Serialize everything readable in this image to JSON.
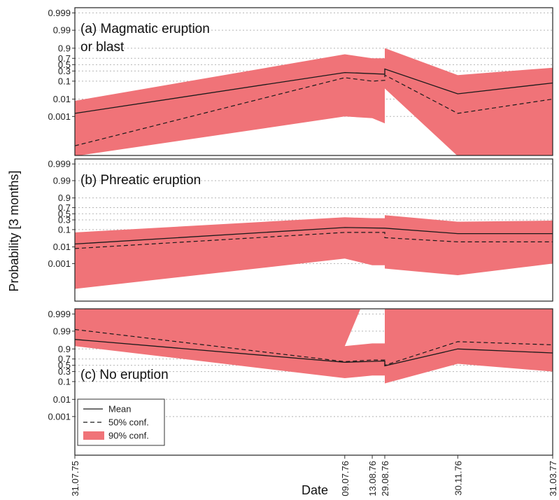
{
  "chart_data": {
    "type": "area",
    "xlabel": "Date",
    "ylabel": "Probability [3 months]",
    "x_dates": [
      "31.07.75",
      "09.07.76",
      "13.08.76",
      "29.08.76",
      "30.11.76",
      "31.03.77"
    ],
    "y_scale": "logit",
    "y_ticks": [
      {
        "label": "0.999",
        "value": 0.999
      },
      {
        "label": "0.99",
        "value": 0.99
      },
      {
        "label": "0.9",
        "value": 0.9
      },
      {
        "label": "0.7",
        "value": 0.7
      },
      {
        "label": "0.5",
        "value": 0.5
      },
      {
        "label": "0.3",
        "value": 0.3
      },
      {
        "label": "0.1",
        "value": 0.1
      },
      {
        "label": "0.01",
        "value": 0.01
      },
      {
        "label": "0.001",
        "value": 0.001
      }
    ],
    "grid": true,
    "legend": {
      "placement": "bottom-left of panel (c)",
      "entries": [
        {
          "label": "Mean",
          "style": "solid"
        },
        {
          "label": "50% conf.",
          "style": "dashed"
        },
        {
          "label": "90% conf.",
          "style": "fill"
        }
      ]
    },
    "colors": {
      "band": "#f07378",
      "line": "#1a1a1a",
      "grid": "#b5b5b5"
    },
    "panels": [
      {
        "label": "(a) Magmatic eruption\nor blast",
        "mean": [
          {
            "x": "31.07.75",
            "y": 0.0015
          },
          {
            "x": "09.07.76",
            "y": 0.26
          },
          {
            "x": "29.08.76",
            "y": 0.22
          },
          {
            "x": "29.08.76",
            "y": 0.36
          },
          {
            "x": "30.11.76",
            "y": 0.02
          },
          {
            "x": "31.03.77",
            "y": 0.08
          }
        ],
        "conf50": [
          {
            "x": "31.07.75",
            "y": 2e-05
          },
          {
            "x": "09.07.76",
            "y": 0.15
          },
          {
            "x": "13.08.76",
            "y": 0.1
          },
          {
            "x": "29.08.76",
            "y": 0.11
          },
          {
            "x": "29.08.76",
            "y": 0.2
          },
          {
            "x": "30.11.76",
            "y": 0.0015
          },
          {
            "x": "31.03.77",
            "y": 0.01
          }
        ],
        "band_upper": [
          {
            "x": "31.07.75",
            "y": 0.008
          },
          {
            "x": "09.07.76",
            "y": 0.8
          },
          {
            "x": "13.08.76",
            "y": 0.7
          },
          {
            "x": "29.08.76",
            "y": 0.7
          },
          {
            "x": "29.08.76",
            "y": 0.9
          },
          {
            "x": "30.11.76",
            "y": 0.2
          },
          {
            "x": "31.03.77",
            "y": 0.4
          }
        ],
        "band_lower": [
          {
            "x": "31.07.75",
            "y": 5e-06
          },
          {
            "x": "09.07.76",
            "y": 0.001
          },
          {
            "x": "13.08.76",
            "y": 0.0008
          },
          {
            "x": "29.08.76",
            "y": 0.0004
          },
          {
            "x": "29.08.76",
            "y": 0.04
          },
          {
            "x": "30.11.76",
            "y": 5e-06
          },
          {
            "x": "31.03.77",
            "y": 5e-06
          }
        ]
      },
      {
        "label": "(b) Phreatic eruption",
        "mean": [
          {
            "x": "31.07.75",
            "y": 0.015
          },
          {
            "x": "09.07.76",
            "y": 0.13
          },
          {
            "x": "29.08.76",
            "y": 0.12
          },
          {
            "x": "30.11.76",
            "y": 0.06
          },
          {
            "x": "31.03.77",
            "y": 0.06
          }
        ],
        "conf50": [
          {
            "x": "31.07.75",
            "y": 0.008
          },
          {
            "x": "09.07.76",
            "y": 0.07
          },
          {
            "x": "29.08.76",
            "y": 0.07
          },
          {
            "x": "29.08.76",
            "y": 0.035
          },
          {
            "x": "30.11.76",
            "y": 0.02
          },
          {
            "x": "31.03.77",
            "y": 0.02
          }
        ],
        "band_upper": [
          {
            "x": "31.07.75",
            "y": 0.07
          },
          {
            "x": "09.07.76",
            "y": 0.38
          },
          {
            "x": "13.08.76",
            "y": 0.35
          },
          {
            "x": "29.08.76",
            "y": 0.35
          },
          {
            "x": "29.08.76",
            "y": 0.45
          },
          {
            "x": "30.11.76",
            "y": 0.25
          },
          {
            "x": "31.03.77",
            "y": 0.28
          }
        ],
        "band_lower": [
          {
            "x": "31.07.75",
            "y": 3e-05
          },
          {
            "x": "09.07.76",
            "y": 0.002
          },
          {
            "x": "13.08.76",
            "y": 0.0008
          },
          {
            "x": "29.08.76",
            "y": 0.0008
          },
          {
            "x": "29.08.76",
            "y": 0.0005
          },
          {
            "x": "30.11.76",
            "y": 0.0002
          },
          {
            "x": "31.03.77",
            "y": 0.001
          }
        ]
      },
      {
        "label": "(c) No eruption",
        "mean": [
          {
            "x": "31.07.75",
            "y": 0.97
          },
          {
            "x": "09.07.76",
            "y": 0.6
          },
          {
            "x": "29.08.76",
            "y": 0.64
          },
          {
            "x": "29.08.76",
            "y": 0.48
          },
          {
            "x": "30.11.76",
            "y": 0.9
          },
          {
            "x": "31.03.77",
            "y": 0.84
          }
        ],
        "conf50": [
          {
            "x": "31.07.75",
            "y": 0.992
          },
          {
            "x": "09.07.76",
            "y": 0.62
          },
          {
            "x": "13.08.76",
            "y": 0.67
          },
          {
            "x": "29.08.76",
            "y": 0.67
          },
          {
            "x": "29.08.76",
            "y": 0.5
          },
          {
            "x": "30.11.76",
            "y": 0.96
          },
          {
            "x": "31.03.77",
            "y": 0.94
          }
        ],
        "band_upper": [
          {
            "x": "31.07.75",
            "y": 0.9995
          },
          {
            "x": "29.07.76",
            "y": 0.9995
          },
          {
            "x": "09.07.76",
            "y": 0.93
          },
          {
            "x": "13.08.76",
            "y": 0.95
          },
          {
            "x": "29.08.76",
            "y": 0.95
          },
          {
            "x": "29.08.76",
            "y": 0.9995
          },
          {
            "x": "31.03.77",
            "y": 0.9995
          }
        ],
        "band_lower": [
          {
            "x": "31.07.75",
            "y": 0.93
          },
          {
            "x": "09.07.76",
            "y": 0.15
          },
          {
            "x": "13.08.76",
            "y": 0.2
          },
          {
            "x": "29.08.76",
            "y": 0.2
          },
          {
            "x": "29.08.76",
            "y": 0.08
          },
          {
            "x": "30.11.76",
            "y": 0.55
          },
          {
            "x": "31.03.77",
            "y": 0.3
          }
        ]
      }
    ]
  }
}
